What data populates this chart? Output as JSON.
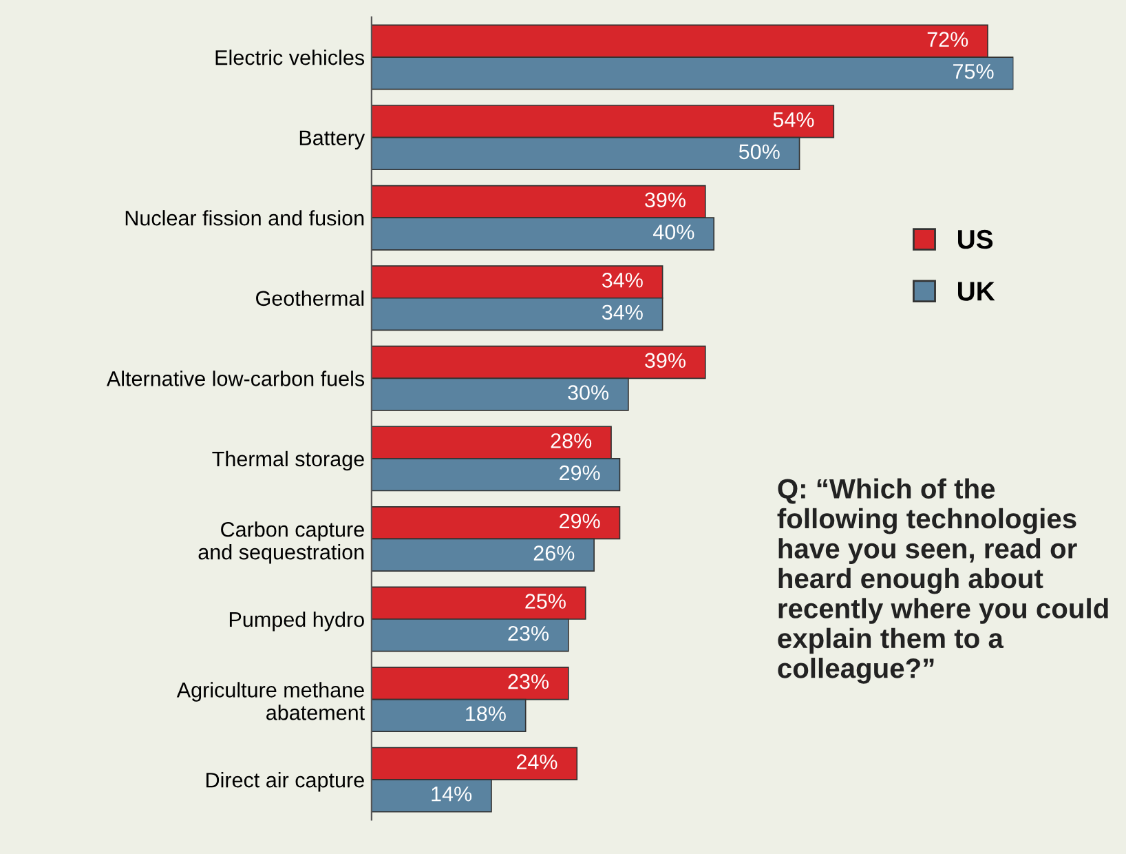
{
  "chart_data": {
    "type": "bar",
    "orientation": "horizontal",
    "categories": [
      "Electric vehicles",
      "Battery",
      "Nuclear fission and fusion",
      "Geothermal",
      "Alternative low-carbon fuels",
      "Thermal storage",
      "Carbon capture\nand sequestration",
      "Pumped hydro",
      "Agriculture methane\nabatement",
      "Direct air capture"
    ],
    "series": [
      {
        "name": "US",
        "color": "#d7262b",
        "values": [
          72,
          54,
          39,
          34,
          39,
          28,
          29,
          25,
          23,
          24
        ],
        "value_labels": [
          "72%",
          "54%",
          "39%",
          "34%",
          "39%",
          "28%",
          "29%",
          "25%",
          "23%",
          "24%"
        ]
      },
      {
        "name": "UK",
        "color": "#5a83a0",
        "values": [
          75,
          50,
          40,
          34,
          30,
          29,
          26,
          23,
          18,
          14
        ],
        "value_labels": [
          "75%",
          "50%",
          "40%",
          "34%",
          "30%",
          "29%",
          "26%",
          "23%",
          "18%",
          "14%"
        ]
      }
    ],
    "tick_labels": "y",
    "grid": false,
    "legend": "right",
    "annotations": [
      "Q: “Which of the following technologies have you seen, read or heard enough about recently where you could explain them to a colleague?”"
    ]
  }
}
